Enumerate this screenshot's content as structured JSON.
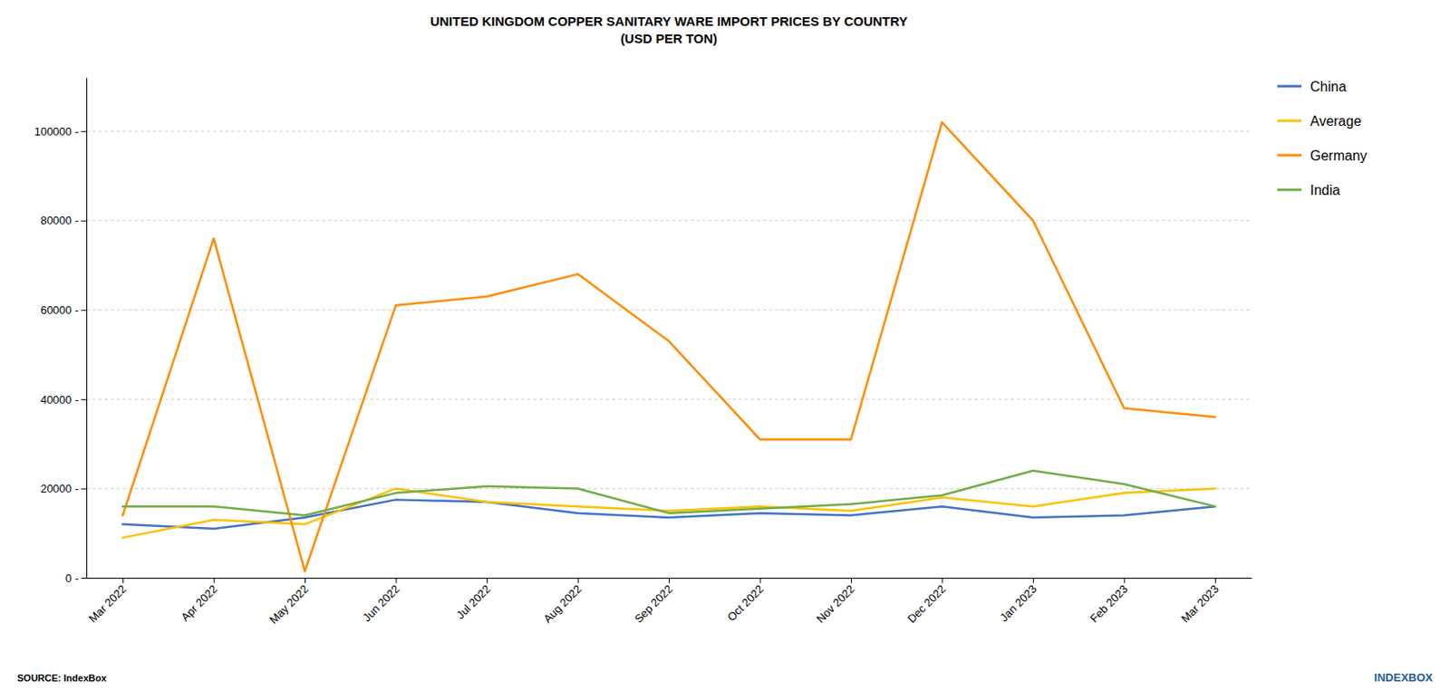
{
  "chart_data": {
    "type": "line",
    "title": "UNITED KINGDOM COPPER SANITARY WARE IMPORT PRICES BY COUNTRY\n(USD PER TON)",
    "categories": [
      "Mar 2022",
      "Apr 2022",
      "May 2022",
      "Jun 2022",
      "Jul 2022",
      "Aug 2022",
      "Sep 2022",
      "Oct 2022",
      "Nov 2022",
      "Dec 2022",
      "Jan 2023",
      "Feb 2023",
      "Mar 2023"
    ],
    "series": [
      {
        "name": "China",
        "color": "#4472C4",
        "values": [
          12000,
          11000,
          13500,
          17500,
          17000,
          14500,
          13500,
          14500,
          14000,
          16000,
          13500,
          14000,
          16000
        ]
      },
      {
        "name": "Average",
        "color": "#FFC000",
        "values": [
          9000,
          13000,
          12000,
          20000,
          17000,
          16000,
          15000,
          16000,
          15000,
          18000,
          16000,
          19000,
          20000
        ]
      },
      {
        "name": "Germany",
        "color": "#FF8C00",
        "values": [
          14000,
          76000,
          1500,
          61000,
          63000,
          68000,
          53000,
          31000,
          31000,
          102000,
          80000,
          38000,
          36000
        ]
      },
      {
        "name": "India",
        "color": "#70AD47",
        "values": [
          16000,
          16000,
          14000,
          19000,
          20500,
          20000,
          14500,
          15500,
          16500,
          18500,
          24000,
          21000,
          16000
        ]
      }
    ],
    "ylim": [
      0,
      112000
    ],
    "yticks": [
      {
        "value": 0,
        "label": "0 -"
      },
      {
        "value": 20000,
        "label": "20000 -"
      },
      {
        "value": 40000,
        "label": "40000 -"
      },
      {
        "value": 60000,
        "label": "60000 -"
      },
      {
        "value": 80000,
        "label": "80000 -"
      },
      {
        "value": 100000,
        "label": "100000 -"
      }
    ],
    "grid": true,
    "legend": "right",
    "annotations": [
      "SOURCE: IndexBox",
      "INDEXBOX"
    ]
  }
}
